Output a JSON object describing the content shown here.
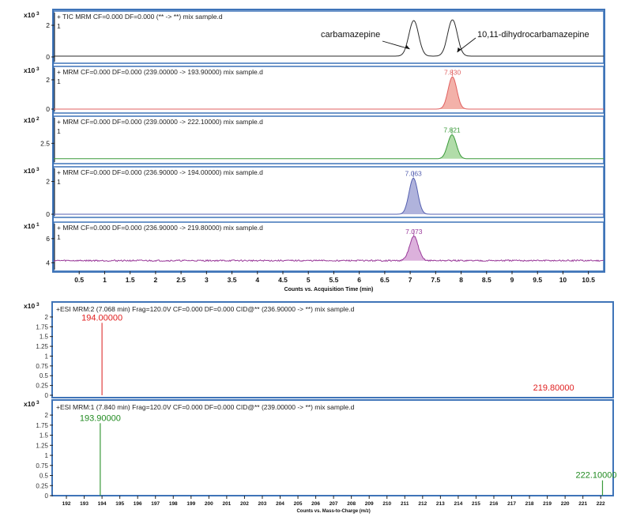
{
  "chart_data": [
    {
      "type": "line",
      "title": "+ TIC MRM CF=0.000 DF=0.000 (** -> **) mix sample.d",
      "multiplier": "x10^3",
      "yticks": [
        "0",
        "2"
      ],
      "trace_label": "1",
      "x_range": [
        0,
        10.8
      ],
      "y_range": [
        0,
        2.7
      ],
      "peaks": [
        {
          "rt": 7.07,
          "height": 2.25,
          "width": 0.095
        },
        {
          "rt": 7.83,
          "height": 2.3,
          "width": 0.095
        }
      ],
      "baseline": 0.05,
      "color": "#2b2b2b",
      "annotations": [
        {
          "text": "carbamazepine"
        },
        {
          "text": "10,11-dihydrocarbamazepine"
        }
      ]
    },
    {
      "type": "area",
      "title": "+ MRM CF=0.000 DF=0.000 (239.00000 -> 193.90000) mix sample.d",
      "multiplier": "x10^3",
      "yticks": [
        "0",
        "2"
      ],
      "trace_label": "1",
      "x_range": [
        0,
        10.8
      ],
      "y_range": [
        0,
        2.7
      ],
      "peaks": [
        {
          "rt": 7.83,
          "height": 2.2,
          "width": 0.085
        }
      ],
      "baseline": 0,
      "color": "#e06060",
      "fill": "#f2a8a0",
      "peak_label": "7.830"
    },
    {
      "type": "area",
      "title": "+ MRM CF=0.000 DF=0.000 (239.00000 -> 222.10000) mix sample.d",
      "multiplier": "x10^2",
      "yticks": [
        "2.5"
      ],
      "trace_label": "1",
      "x_range": [
        0,
        10.8
      ],
      "y_range": [
        0,
        6
      ],
      "peaks": [
        {
          "rt": 7.821,
          "height": 3.5,
          "width": 0.085
        }
      ],
      "baseline": 0.25,
      "color": "#3a9a3a",
      "fill": "#a9d8a0",
      "peak_label": "7.821"
    },
    {
      "type": "area",
      "title": "+ MRM CF=0.000 DF=0.000 (236.90000 -> 194.00000) mix sample.d",
      "multiplier": "x10^3",
      "yticks": [
        "0",
        "2"
      ],
      "trace_label": "1",
      "x_range": [
        0,
        10.8
      ],
      "y_range": [
        0,
        2.7
      ],
      "peaks": [
        {
          "rt": 7.063,
          "height": 2.2,
          "width": 0.085
        }
      ],
      "baseline": 0,
      "color": "#5560b0",
      "fill": "#a7abd8",
      "peak_label": "7.063"
    },
    {
      "type": "area",
      "title": "+ MRM CF=0.000 DF=0.000 (236.90000 -> 219.80000) mix sample.d",
      "multiplier": "x10^1",
      "yticks": [
        "4",
        "6"
      ],
      "trace_label": "1",
      "x_range": [
        0,
        10.8
      ],
      "y_range": [
        3.7,
        7.1
      ],
      "peaks": [
        {
          "rt": 7.073,
          "height": 2.0,
          "width": 0.085
        }
      ],
      "baseline": 4.18,
      "noise": 0.06,
      "color": "#9a3a9a",
      "fill": "#d8a8d8",
      "peak_label": "7.073"
    },
    {
      "type": "bar",
      "title": "+ESI MRM:2 (7.068 min) Frag=120.0V CF=0.000 DF=0.000 CID@** (236.90000 -> **) mix sample.d",
      "multiplier": "x10^3",
      "yticks": [
        "0",
        "0.25",
        "0.5",
        "0.75",
        "1",
        "1.25",
        "1.5",
        "1.75",
        "2"
      ],
      "y_range": [
        0,
        2.1
      ],
      "x_range": [
        191.2,
        222.7
      ],
      "color": "#e04040",
      "label_color": "#e02020",
      "bars": [
        {
          "mz": 194.0,
          "intensity": 1.85,
          "label": "194.00000"
        },
        {
          "mz": 219.8,
          "intensity": 0,
          "label": "219.80000"
        }
      ]
    },
    {
      "type": "bar",
      "title": "+ESI MRM:1 (7.840 min) Frag=120.0V CF=0.000 DF=0.000 CID@** (239.00000 -> **) mix sample.d",
      "multiplier": "x10^3",
      "yticks": [
        "0",
        "0.25",
        "0.5",
        "0.75",
        "1",
        "1.25",
        "1.5",
        "1.75",
        "2"
      ],
      "y_range": [
        0,
        2.1
      ],
      "x_range": [
        191.2,
        222.7
      ],
      "color": "#3a9a3a",
      "label_color": "#208a20",
      "bars": [
        {
          "mz": 193.9,
          "intensity": 1.8,
          "label": "193.90000"
        },
        {
          "mz": 222.1,
          "intensity": 0.38,
          "label": "222.10000"
        }
      ]
    }
  ],
  "axes": {
    "rt_ticks": [
      "0.5",
      "1",
      "1.5",
      "2",
      "2.5",
      "3",
      "3.5",
      "4",
      "4.5",
      "5",
      "5.5",
      "6",
      "6.5",
      "7",
      "7.5",
      "8",
      "8.5",
      "9",
      "9.5",
      "10",
      "10.5"
    ],
    "rt_label": "Counts vs. Acquisition Time (min)",
    "mz_ticks": [
      "192",
      "193",
      "194",
      "195",
      "196",
      "197",
      "198",
      "199",
      "200",
      "201",
      "202",
      "203",
      "204",
      "205",
      "206",
      "207",
      "208",
      "209",
      "210",
      "211",
      "212",
      "213",
      "214",
      "215",
      "216",
      "217",
      "218",
      "219",
      "220",
      "221",
      "222"
    ],
    "mz_label": "Counts vs. Mass-to-Charge (m/z)"
  },
  "colors": {
    "frame": "#3f74b8",
    "axis": "#222222"
  }
}
